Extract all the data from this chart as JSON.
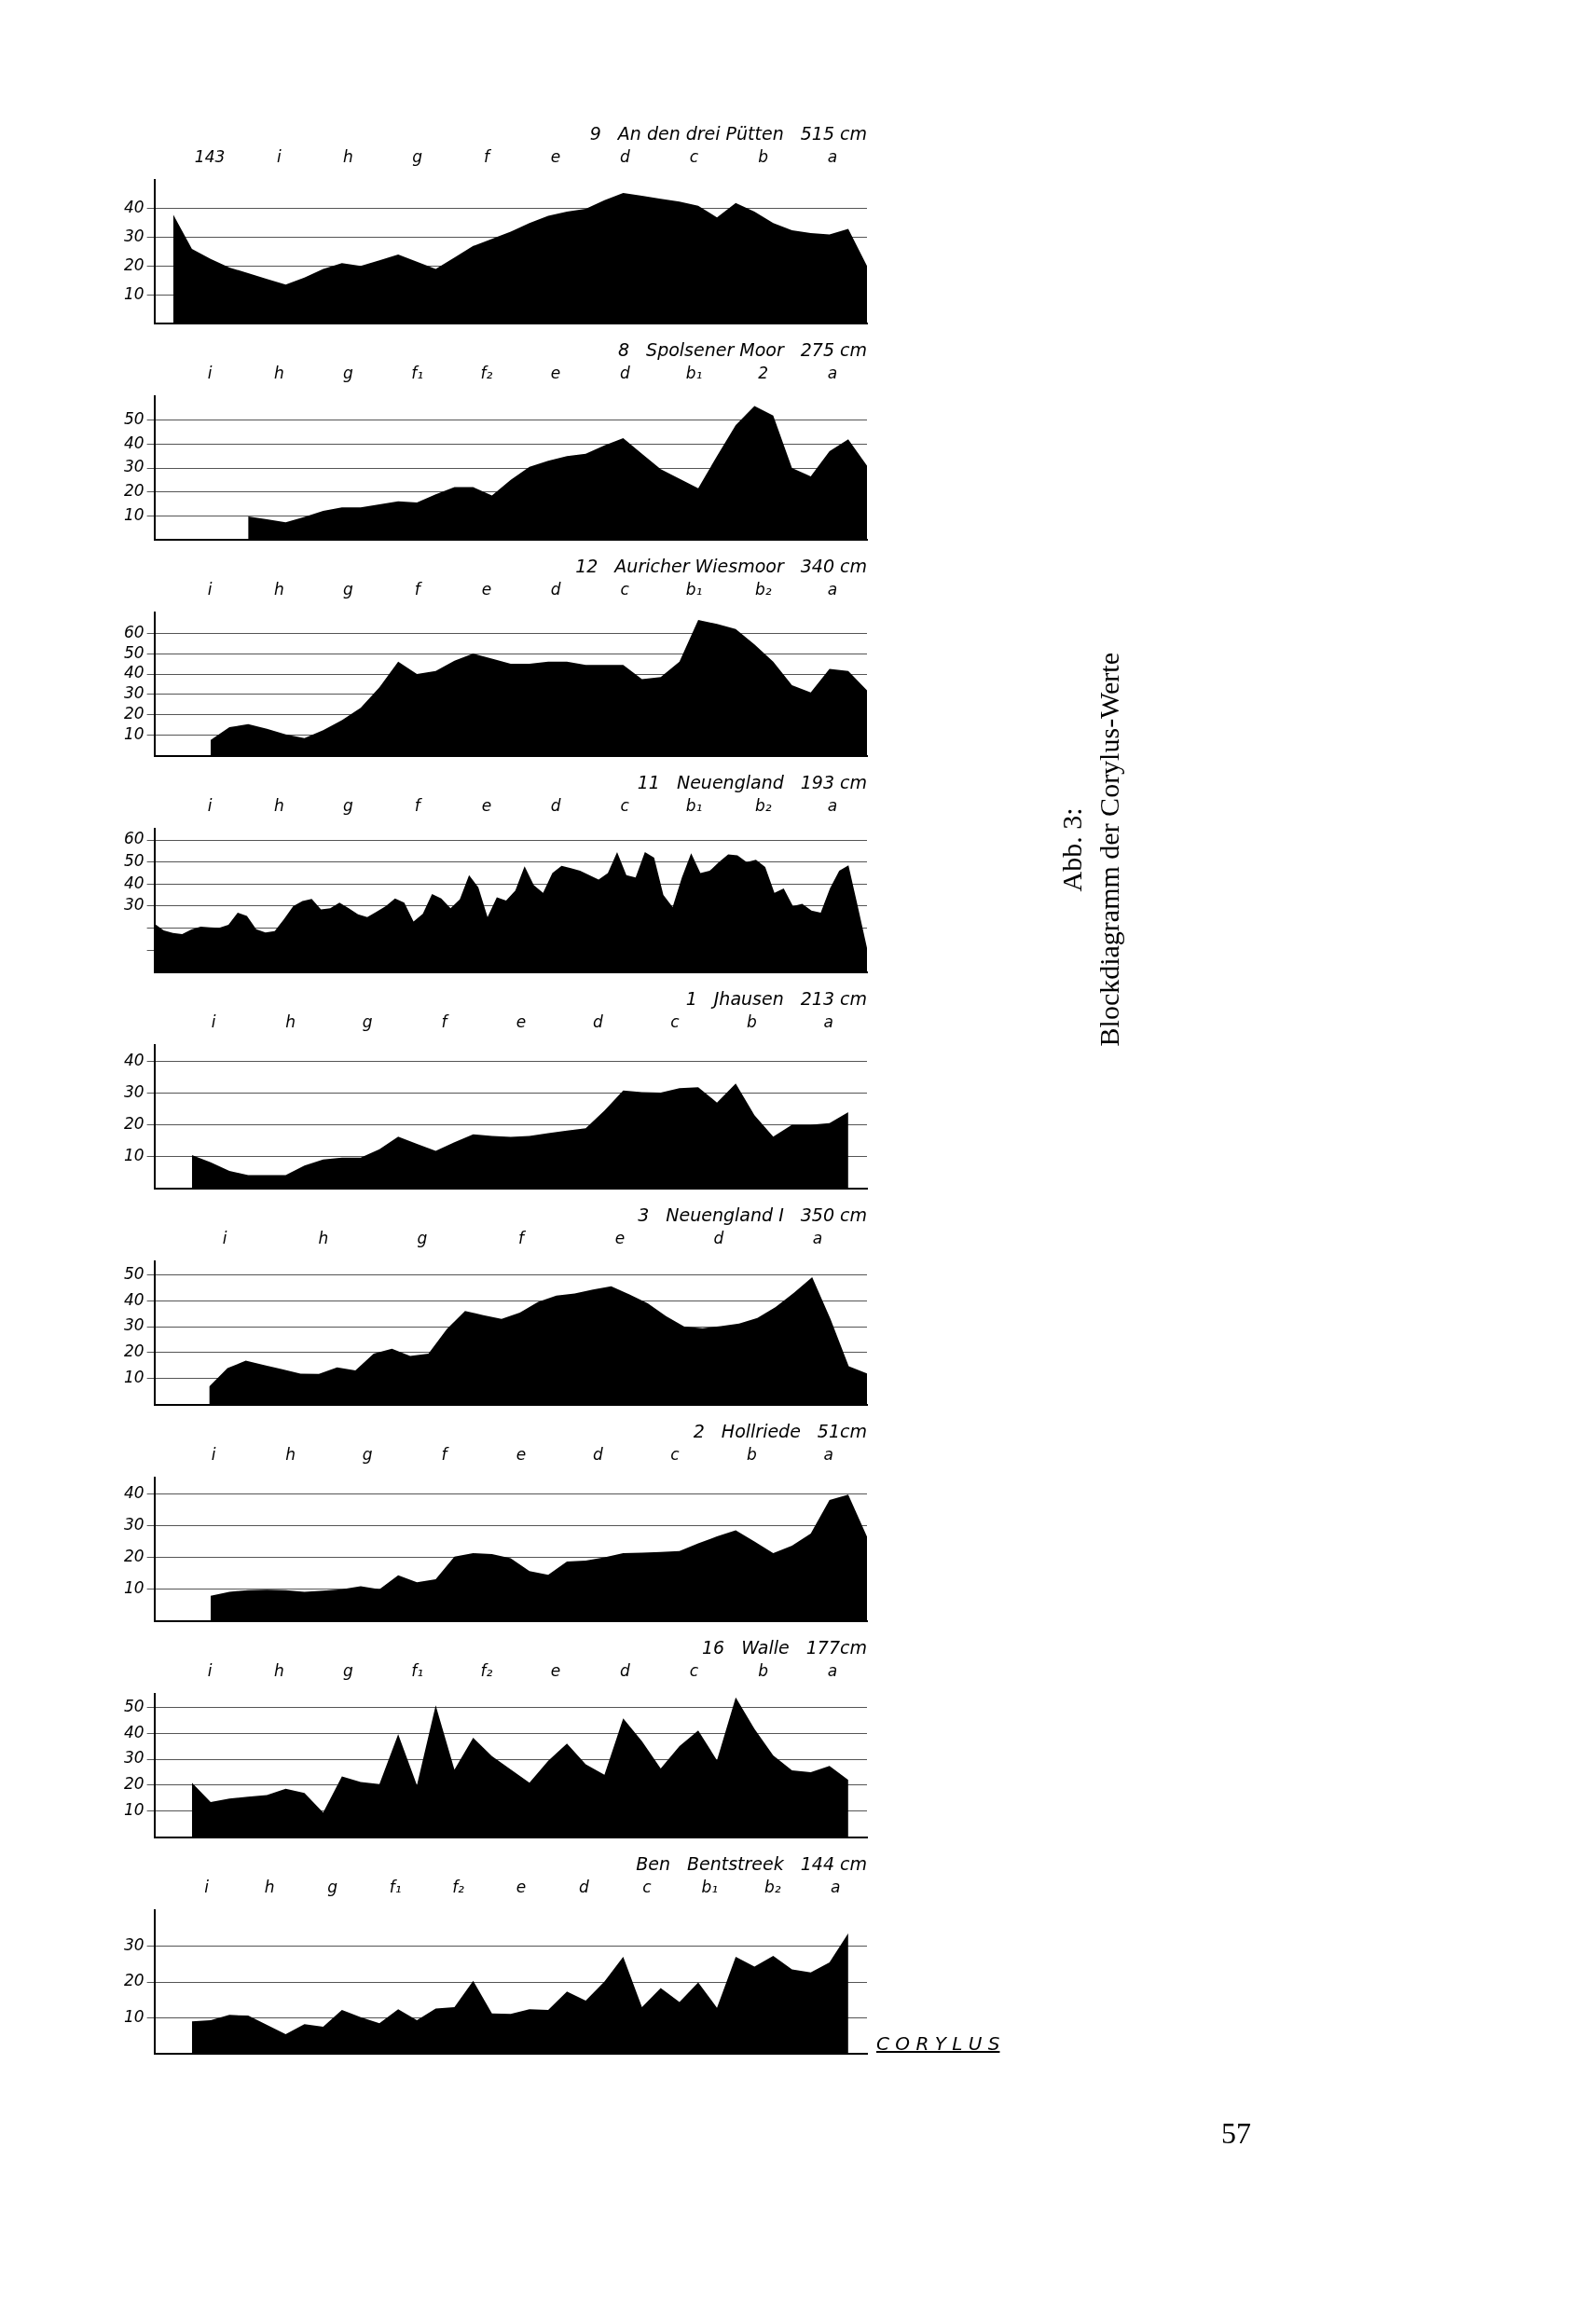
{
  "chart_data": [
    {
      "type": "area",
      "title": "9",
      "subtitle": "An den drei Pütten",
      "xlabel": "515 cm",
      "color": "#000000",
      "tick_labels": "y",
      "grid": "y",
      "ylim": [
        0,
        50
      ],
      "yticks": [
        10,
        20,
        30,
        40
      ],
      "annotations": [
        "143",
        "i",
        "h",
        "g",
        "f",
        "e",
        "d",
        "c",
        "b",
        "a"
      ],
      "categories": [
        null,
        null,
        null,
        null,
        null,
        null,
        null,
        null,
        null,
        null,
        null,
        null,
        null,
        null,
        null,
        null,
        null,
        null,
        null,
        null,
        null,
        null,
        null,
        null,
        null,
        null,
        null,
        null,
        null,
        null,
        null,
        null,
        null,
        null,
        null,
        null,
        null,
        null,
        null
      ],
      "values": [
        null,
        38,
        26,
        22.5,
        19.5,
        17.5,
        15.5,
        13.5,
        16,
        19,
        21,
        20,
        22,
        24,
        21.5,
        19,
        23,
        27,
        29.5,
        32,
        35,
        37.5,
        39,
        40,
        43,
        45.5,
        44.5,
        43.5,
        42.5,
        41,
        37,
        42,
        39,
        35,
        32.5,
        31.5,
        31,
        33,
        20
      ]
    },
    {
      "type": "area",
      "title": "8",
      "subtitle": "Spolsener Moor",
      "xlabel": "275 cm",
      "color": "#000000",
      "tick_labels": "y",
      "grid": "y",
      "ylim": [
        0,
        60
      ],
      "yticks": [
        10,
        20,
        30,
        40,
        50
      ],
      "annotations": [
        "i",
        "h",
        "g",
        "f₁",
        "f₂",
        "e",
        "d",
        "b₁",
        "2",
        "a"
      ],
      "categories": [
        null,
        null,
        null,
        null,
        null,
        null,
        null,
        null,
        null,
        null,
        null,
        null,
        null,
        null,
        null,
        null,
        null,
        null,
        null,
        null,
        null,
        null,
        null,
        null,
        null,
        null,
        null,
        null,
        null,
        null,
        null,
        null,
        null,
        null,
        null,
        null,
        null,
        null,
        null
      ],
      "values": [
        null,
        null,
        null,
        null,
        null,
        9.7,
        8.5,
        7.2,
        9.5,
        12,
        13.5,
        13.5,
        14.8,
        16,
        15.5,
        19,
        22,
        22,
        18.5,
        25,
        30.5,
        33,
        35,
        36,
        39.5,
        42.5,
        36,
        29.5,
        25.5,
        21.5,
        35,
        48,
        56,
        52,
        30,
        26.5,
        37,
        42,
        31
      ]
    },
    {
      "type": "area",
      "title": "12",
      "subtitle": "Auricher Wiesmoor",
      "xlabel": "340 cm",
      "color": "#000000",
      "tick_labels": "y",
      "grid": "y",
      "ylim": [
        0,
        70
      ],
      "yticks": [
        10,
        20,
        30,
        40,
        50,
        60
      ],
      "annotations": [
        "i",
        "h",
        "g",
        "f",
        "e",
        "d",
        "c",
        "b₁",
        "b₂",
        "a"
      ],
      "categories": [
        null,
        null,
        null,
        null,
        null,
        null,
        null,
        null,
        null,
        null,
        null,
        null,
        null,
        null,
        null,
        null,
        null,
        null,
        null,
        null,
        null,
        null,
        null,
        null,
        null,
        null,
        null,
        null,
        null,
        null,
        null,
        null,
        null,
        null,
        null,
        null,
        null,
        null,
        null
      ],
      "values": [
        null,
        null,
        null,
        7.8,
        14,
        15.5,
        13.2,
        10.5,
        8.7,
        12.5,
        17.5,
        23.5,
        33.5,
        46,
        40,
        41.5,
        46.5,
        50,
        47.5,
        45,
        45,
        46,
        46,
        44.5,
        44.5,
        44.5,
        37.5,
        38.5,
        46,
        66.5,
        64.5,
        62,
        54.5,
        46,
        34.5,
        31,
        42.5,
        41.5,
        32
      ]
    },
    {
      "type": "area",
      "title": "11",
      "subtitle": "Neuengland",
      "xlabel": "193 cm",
      "color": "#000000",
      "tick_labels": "y",
      "grid": "y",
      "ylim": [
        0,
        65
      ],
      "yticks": [
        {
          "value": 10,
          "label": null
        },
        {
          "value": 20,
          "label": null
        },
        30,
        40,
        50,
        60
      ],
      "annotations": [
        "i",
        "h",
        "g",
        "f",
        "e",
        "d",
        "c",
        "b₁",
        "b₂",
        "a"
      ],
      "categories": [
        null,
        null,
        null,
        null,
        null,
        null,
        null,
        null,
        null,
        null,
        null,
        null,
        null,
        null,
        null,
        null,
        null,
        null,
        null,
        null,
        null,
        null,
        null,
        null,
        null,
        null,
        null,
        null,
        null,
        null,
        null,
        null,
        null,
        null,
        null,
        null,
        null,
        null,
        null,
        null,
        null,
        null,
        null,
        null,
        null,
        null,
        null,
        null,
        null,
        null,
        null,
        null,
        null,
        null,
        null,
        null,
        null,
        null,
        null,
        null,
        null,
        null,
        null,
        null,
        null,
        null,
        null,
        null,
        null,
        null,
        null,
        null,
        null,
        null,
        null,
        null,
        null,
        null
      ],
      "values": [
        22,
        19,
        17.8,
        17.3,
        19.4,
        20.6,
        20.3,
        20.1,
        21.5,
        27,
        25.5,
        19.5,
        18,
        18.6,
        24,
        30,
        32.3,
        33.2,
        28.5,
        29,
        31.5,
        29,
        26.3,
        25,
        27.4,
        30,
        33.5,
        31.5,
        23,
        26.5,
        35.5,
        33.5,
        29,
        33,
        44,
        38.5,
        25,
        34,
        32.5,
        37,
        48,
        39.5,
        36,
        45,
        48.3,
        47.2,
        46,
        44,
        42,
        45,
        54.5,
        44,
        43,
        54.5,
        52,
        35,
        29.5,
        43,
        54,
        45,
        46,
        50,
        53.5,
        53,
        50,
        51,
        47.7,
        36,
        38,
        30,
        31,
        28,
        27,
        38,
        46,
        48.5,
        30,
        11
      ]
    },
    {
      "type": "area",
      "title": "1",
      "subtitle": "Jhausen",
      "xlabel": "213 cm",
      "color": "#000000",
      "tick_labels": "y",
      "grid": "y",
      "ylim": [
        0,
        45
      ],
      "yticks": [
        10,
        20,
        30,
        40
      ],
      "annotations": [
        "i",
        "h",
        "g",
        "f",
        "e",
        "d",
        "c",
        "b",
        "a"
      ],
      "categories": [
        null,
        null,
        null,
        null,
        null,
        null,
        null,
        null,
        null,
        null,
        null,
        null,
        null,
        null,
        null,
        null,
        null,
        null,
        null,
        null,
        null,
        null,
        null,
        null,
        null,
        null,
        null,
        null,
        null,
        null,
        null,
        null,
        null,
        null,
        null,
        null,
        null,
        null,
        null
      ],
      "values": [
        null,
        null,
        10.5,
        8.2,
        5.5,
        4.2,
        4.2,
        4.2,
        7.2,
        9.1,
        9.7,
        9.7,
        12.3,
        16.3,
        14,
        11.8,
        14.5,
        17,
        16.5,
        16.2,
        16.5,
        17.4,
        18.2,
        18.9,
        24.5,
        30.8,
        30.3,
        30.1,
        31.5,
        31.8,
        27,
        33,
        23,
        16.3,
        20,
        20,
        20.5,
        24,
        null
      ]
    },
    {
      "type": "area",
      "title": "3",
      "subtitle": "Neuengland I",
      "xlabel": "350 cm",
      "color": "#000000",
      "tick_labels": "y",
      "grid": "y",
      "ylim": [
        0,
        55
      ],
      "yticks": [
        10,
        20,
        30,
        40,
        50
      ],
      "annotations": [
        "i",
        "h",
        "g",
        "f",
        "e",
        "d",
        "a"
      ],
      "categories": [
        null,
        null,
        null,
        null,
        null,
        null,
        null,
        null,
        null,
        null,
        null,
        null,
        null,
        null,
        null,
        null,
        null,
        null,
        null,
        null,
        null,
        null,
        null,
        null,
        null,
        null,
        null,
        null,
        null,
        null,
        null,
        null,
        null,
        null,
        null,
        null,
        null,
        null,
        null,
        null
      ],
      "values": [
        null,
        null,
        null,
        7,
        14.1,
        16.9,
        15.2,
        13.6,
        11.9,
        11.8,
        14.3,
        13.2,
        19.6,
        21.5,
        18.7,
        19.6,
        29,
        36,
        34.4,
        33,
        35.4,
        39.5,
        41.9,
        42.7,
        44.2,
        45.5,
        42.4,
        39,
        34,
        30,
        29.4,
        30.2,
        31.2,
        33.3,
        37.5,
        43,
        49,
        33,
        14.8,
        12
      ]
    },
    {
      "type": "area",
      "title": "2",
      "subtitle": "Hollriede",
      "xlabel": "51cm",
      "color": "#000000",
      "tick_labels": "y",
      "grid": "y",
      "ylim": [
        0,
        45
      ],
      "yticks": [
        10,
        20,
        30,
        40
      ],
      "annotations": [
        "i",
        "h",
        "g",
        "f",
        "e",
        "d",
        "c",
        "b",
        "a"
      ],
      "categories": [
        null,
        null,
        null,
        null,
        null,
        null,
        null,
        null,
        null,
        null,
        null,
        null,
        null,
        null,
        null,
        null,
        null,
        null,
        null,
        null,
        null,
        null,
        null,
        null,
        null,
        null,
        null,
        null,
        null,
        null,
        null,
        null,
        null,
        null,
        null,
        null,
        null,
        null,
        null
      ],
      "values": [
        null,
        null,
        null,
        7.9,
        9.2,
        9.7,
        9.8,
        9.7,
        9.2,
        9.5,
        10,
        10.9,
        10,
        14.4,
        12.2,
        13.1,
        20.2,
        21.3,
        21,
        19.7,
        15.7,
        14.5,
        18.7,
        19,
        20,
        21.3,
        21.5,
        21.7,
        22,
        24.4,
        26.6,
        28.5,
        25,
        21.3,
        23.7,
        27.5,
        38,
        39.7,
        26.5
      ]
    },
    {
      "type": "area",
      "title": "16",
      "subtitle": "Walle",
      "xlabel": "177cm",
      "color": "#000000",
      "tick_labels": "y",
      "grid": "y",
      "ylim": [
        0,
        55
      ],
      "yticks": [
        10,
        20,
        30,
        40,
        50
      ],
      "annotations": [
        "i",
        "h",
        "g",
        "f₁",
        "f₂",
        "e",
        "d",
        "c",
        "b",
        "a"
      ],
      "categories": [
        null,
        null,
        null,
        null,
        null,
        null,
        null,
        null,
        null,
        null,
        null,
        null,
        null,
        null,
        null,
        null,
        null,
        null,
        null,
        null,
        null,
        null,
        null,
        null,
        null,
        null,
        null,
        null,
        null,
        null,
        null,
        null,
        null,
        null,
        null,
        null,
        null,
        null,
        null
      ],
      "values": [
        null,
        null,
        21,
        13.5,
        14.9,
        15.6,
        16.2,
        18.6,
        17,
        9.5,
        23.4,
        21.2,
        20.4,
        39.6,
        20,
        50.7,
        26,
        38.2,
        31.2,
        26.1,
        21,
        29.4,
        36,
        28,
        24,
        45.7,
        36.9,
        26.4,
        35,
        41,
        29.6,
        53.7,
        41.6,
        31.4,
        25.7,
        25,
        27.4,
        22,
        null
      ]
    },
    {
      "type": "area",
      "title": "Ben",
      "subtitle": "Bentstreek",
      "xlabel": "144 cm",
      "color": "#000000",
      "tick_labels": "y",
      "grid": "y",
      "ylim": [
        0,
        40
      ],
      "yticks": [
        10,
        20,
        30
      ],
      "annotations": [
        "i",
        "h",
        "g",
        "f₁",
        "f₂",
        "e",
        "d",
        "c",
        "b₁",
        "b₂",
        "a"
      ],
      "categories": [
        null,
        null,
        null,
        null,
        null,
        null,
        null,
        null,
        null,
        null,
        null,
        null,
        null,
        null,
        null,
        null,
        null,
        null,
        null,
        null,
        null,
        null,
        null,
        null,
        null,
        null,
        null,
        null,
        null,
        null,
        null,
        null,
        null,
        null,
        null,
        null,
        null,
        null,
        null
      ],
      "values": [
        null,
        null,
        9,
        9.3,
        10.8,
        10.6,
        8,
        5.4,
        8.2,
        7.5,
        12.2,
        10.2,
        8.5,
        12.4,
        9.3,
        12.6,
        13,
        20.3,
        11.2,
        11.1,
        12.4,
        12.2,
        17.3,
        14.8,
        20.1,
        27,
        13,
        18.3,
        14.4,
        19.9,
        12.8,
        27,
        24.3,
        27.3,
        23.5,
        22.7,
        25.5,
        33.6,
        null
      ]
    },
    {
      "type": "other",
      "title": "Abb. 3:",
      "subtitle": "Blockdiagramm der Corylus-Werte",
      "annotations": [
        "C O R Y L U S",
        "57"
      ]
    }
  ]
}
